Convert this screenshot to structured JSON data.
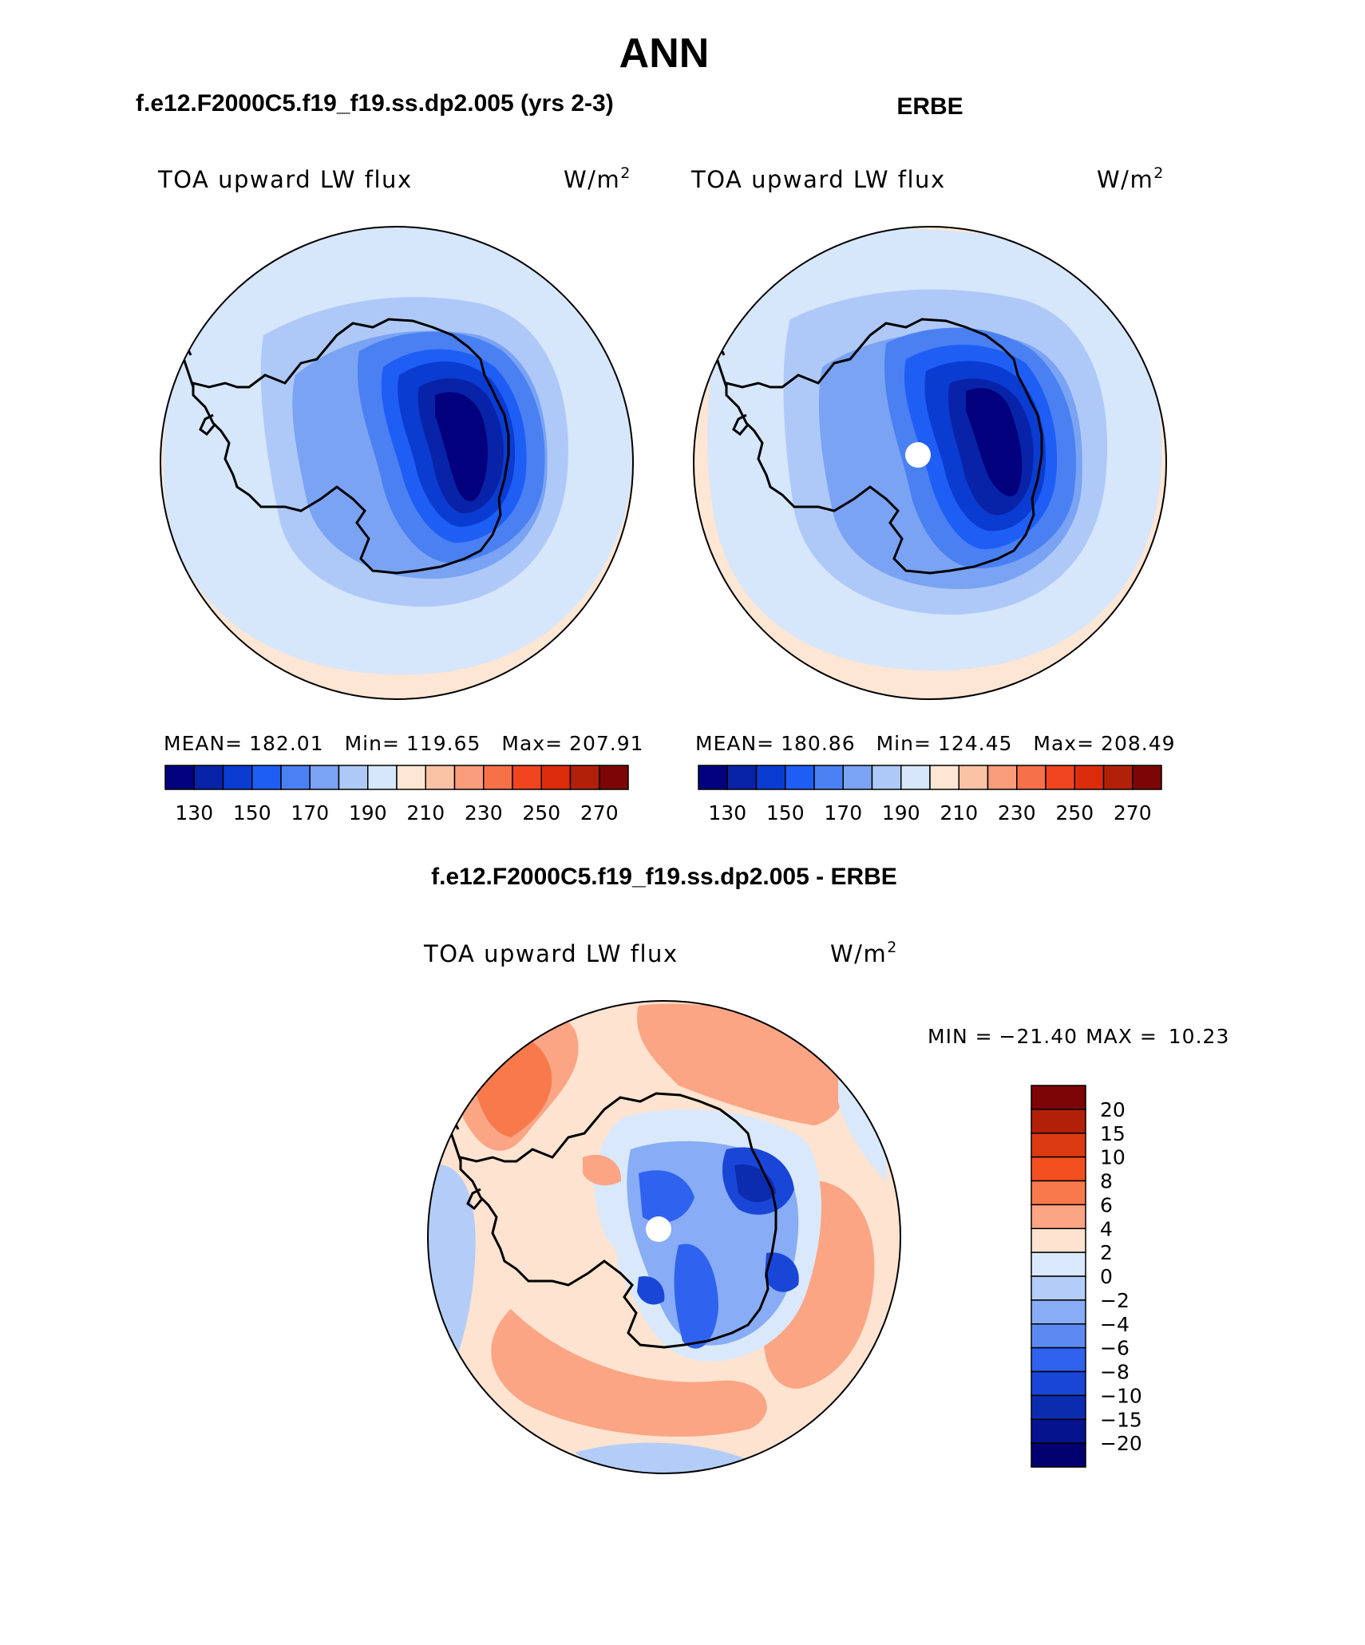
{
  "chart_data": [
    {
      "type": "polar-contour-map",
      "figure_title": "ANN",
      "panel_title": "f.e12.F2000C5.f19_f19.ss.dp2.005 (yrs 2-3)",
      "field": "TOA upward LW flux",
      "units": "W/m",
      "units_sup": "2",
      "mean_label": "MEAN=",
      "mean": "182.01",
      "min_label": "Min=",
      "min": "119.65",
      "max_label": "Max=",
      "max": "207.91",
      "colorbar_ticks": [
        "130",
        "150",
        "170",
        "190",
        "210",
        "230",
        "250",
        "270"
      ],
      "colorbar_colors": [
        "#03007e",
        "#0823a8",
        "#0a3cd2",
        "#1f5ef5",
        "#4a80f2",
        "#7aa3f3",
        "#aec9f8",
        "#d6e6fb",
        "#fde6d3",
        "#fbc3a6",
        "#f99c7a",
        "#f67048",
        "#f1451f",
        "#dc2c0c",
        "#b2200a",
        "#7d0505"
      ],
      "contour_levels": [
        130,
        140,
        150,
        160,
        170,
        180,
        190,
        200,
        210,
        220,
        230,
        240,
        250,
        260,
        270
      ],
      "hole_at_pole": false
    },
    {
      "type": "polar-contour-map",
      "panel_title": "ERBE",
      "field": "TOA upward LW flux",
      "units": "W/m",
      "units_sup": "2",
      "mean_label": "MEAN=",
      "mean": "180.86",
      "min_label": "Min=",
      "min": "124.45",
      "max_label": "Max=",
      "max": "208.49",
      "colorbar_ticks": [
        "130",
        "150",
        "170",
        "190",
        "210",
        "230",
        "250",
        "270"
      ],
      "colorbar_colors": [
        "#03007e",
        "#0823a8",
        "#0a3cd2",
        "#1f5ef5",
        "#4a80f2",
        "#7aa3f3",
        "#aec9f8",
        "#d6e6fb",
        "#fde6d3",
        "#fbc3a6",
        "#f99c7a",
        "#f67048",
        "#f1451f",
        "#dc2c0c",
        "#b2200a",
        "#7d0505"
      ],
      "contour_levels": [
        130,
        140,
        150,
        160,
        170,
        180,
        190,
        200,
        210,
        220,
        230,
        240,
        250,
        260,
        270
      ],
      "hole_at_pole": true
    },
    {
      "type": "polar-contour-map-difference",
      "panel_title": "f.e12.F2000C5.f19_f19.ss.dp2.005 - ERBE",
      "field": "TOA upward LW flux",
      "units": "W/m",
      "units_sup": "2",
      "min_label": "MIN =",
      "min": "−21.40",
      "max_label": "MAX =",
      "max": "10.23",
      "colorbar_ticks": [
        "20",
        "15",
        "10",
        "8",
        "6",
        "4",
        "2",
        "0",
        "−2",
        "−4",
        "−6",
        "−8",
        "−10",
        "−15",
        "−20"
      ],
      "colorbar_colors": [
        "#7d0505",
        "#b2200a",
        "#dc3a10",
        "#f4501f",
        "#f87a4c",
        "#fba585",
        "#fde3d0",
        "#d9e9fb",
        "#b3cdf8",
        "#88acf5",
        "#5d8af2",
        "#2f62ef",
        "#1a46d8",
        "#0c2cb0",
        "#06138e",
        "#020070"
      ],
      "hole_at_pole": true
    }
  ]
}
